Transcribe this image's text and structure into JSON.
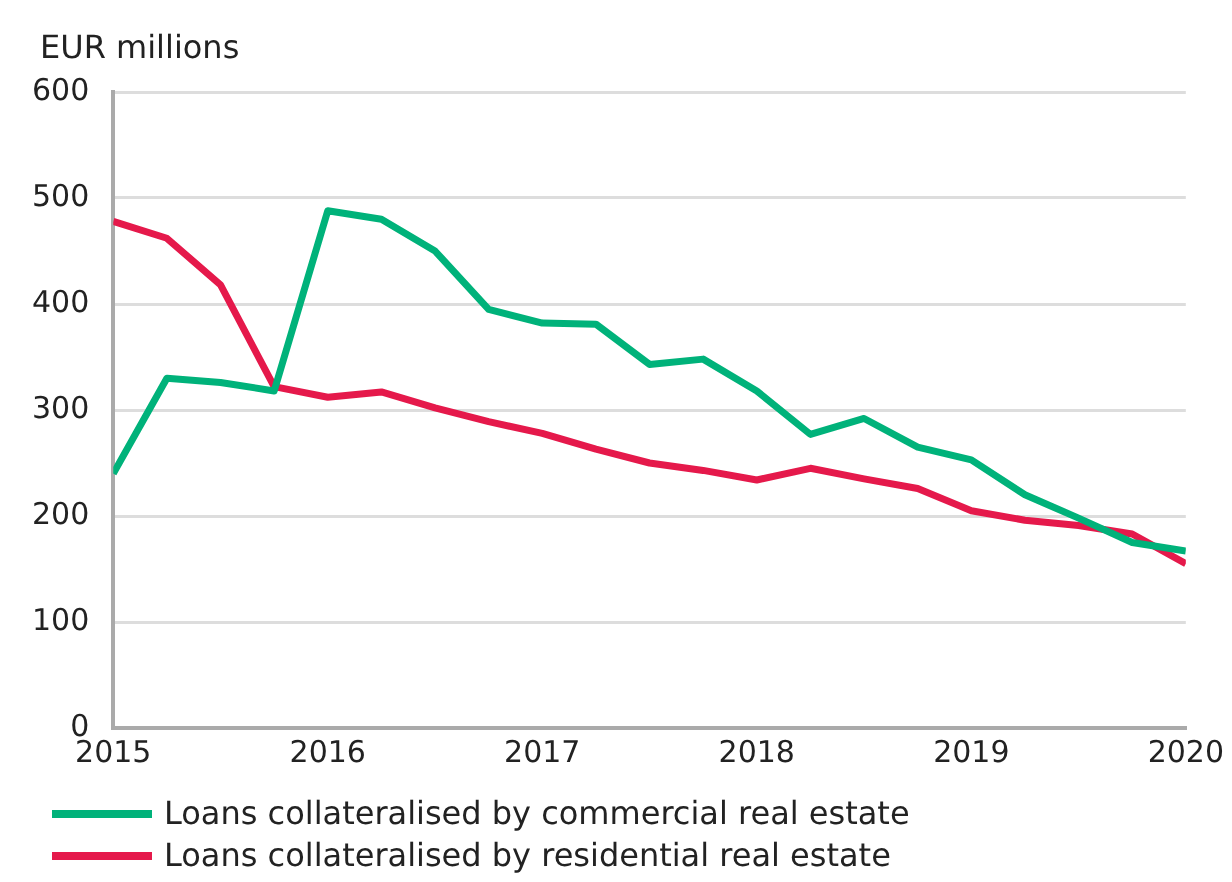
{
  "chart_data": {
    "type": "line",
    "ylabel": "EUR millions",
    "x": [
      2015,
      2015.25,
      2015.5,
      2015.75,
      2016,
      2016.25,
      2016.5,
      2016.75,
      2017,
      2017.25,
      2017.5,
      2017.75,
      2018,
      2018.25,
      2018.5,
      2018.75,
      2019,
      2019.25,
      2019.5,
      2019.75,
      2020
    ],
    "series": [
      {
        "name": "Loans collateralised by commercial real estate",
        "color": "#00b27a",
        "values": [
          240,
          330,
          326,
          318,
          488,
          480,
          450,
          395,
          382,
          381,
          343,
          348,
          318,
          277,
          292,
          265,
          253,
          220,
          198,
          175,
          167
        ]
      },
      {
        "name": "Loans collateralised by residential real estate",
        "color": "#e5194b",
        "values": [
          478,
          462,
          418,
          322,
          312,
          317,
          302,
          289,
          278,
          263,
          250,
          243,
          234,
          245,
          235,
          226,
          205,
          196,
          191,
          183,
          155
        ]
      }
    ],
    "xlim": [
      2015,
      2020
    ],
    "xticks": [
      2015,
      2016,
      2017,
      2018,
      2019,
      2020
    ],
    "ylim": [
      0,
      600
    ],
    "yticks": [
      0,
      100,
      200,
      300,
      400,
      500,
      600
    ],
    "grid": "y",
    "legend": "bottom",
    "marker": "none",
    "line_style": "solid"
  }
}
